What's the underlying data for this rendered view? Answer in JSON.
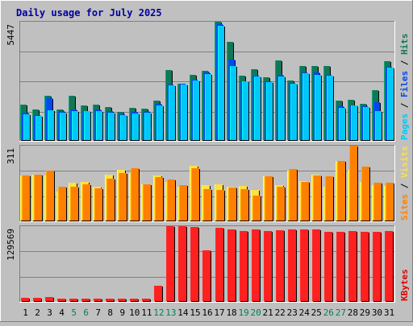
{
  "chart_data": {
    "type": "bar",
    "title": "Daily usage for July 2025",
    "categories": [
      "1",
      "2",
      "3",
      "4",
      "5",
      "6",
      "7",
      "8",
      "9",
      "10",
      "11",
      "12",
      "13",
      "14",
      "15",
      "16",
      "17",
      "18",
      "19",
      "20",
      "21",
      "22",
      "23",
      "24",
      "25",
      "26",
      "27",
      "28",
      "29",
      "30",
      "31"
    ],
    "weekend_days": [
      "5",
      "6",
      "12",
      "13",
      "19",
      "20",
      "26",
      "27"
    ],
    "panels": [
      {
        "name": "requests",
        "ymax_label": "5447",
        "ymax": 5447,
        "ylabel_parts": [
          {
            "text": "Pages",
            "color": "#00c8f8"
          },
          {
            "text": " / ",
            "color": "#000000"
          },
          {
            "text": "Files",
            "color": "#0048f0"
          },
          {
            "text": " / ",
            "color": "#000000"
          },
          {
            "text": "Hits",
            "color": "#107858"
          }
        ],
        "series": [
          {
            "name": "Hits",
            "color": "#107858",
            "values": [
              1630,
              1420,
              2050,
              1410,
              2040,
              1580,
              1620,
              1520,
              1300,
              1470,
              1450,
              1820,
              3210,
              2590,
              2990,
              3200,
              5447,
              4520,
              2980,
              3260,
              2880,
              3680,
              2750,
              3400,
              3410,
              3410,
              1810,
              1860,
              1680,
              2280,
              3630
            ]
          },
          {
            "name": "Files",
            "color": "#0048f0",
            "values": [
              1270,
              1160,
              1940,
              1340,
              1400,
              1320,
              1390,
              1340,
              1180,
              1280,
              1320,
              1660,
              2570,
              2580,
              2780,
              3100,
              5330,
              3720,
              2710,
              2950,
              2700,
              3000,
              2640,
              3110,
              3110,
              3000,
              1540,
              1610,
              1550,
              1730,
              3360
            ]
          },
          {
            "name": "Pages",
            "color": "#00c8f8",
            "values": [
              1200,
              1110,
              1360,
              1270,
              1350,
              1320,
              1330,
              1270,
              1140,
              1240,
              1270,
              1590,
              2530,
              2560,
              2730,
              3020,
              5280,
              3420,
              2700,
              2910,
              2670,
              2940,
              2600,
              3060,
              3000,
              2980,
              1490,
              1580,
              1510,
              1330,
              3330
            ]
          }
        ]
      },
      {
        "name": "visits",
        "ymax_label": "311",
        "ymax": 311,
        "ylabel_parts": [
          {
            "text": "Sites",
            "color": "#ff8000"
          },
          {
            "text": " / ",
            "color": "#000000"
          },
          {
            "text": "Visits",
            "color": "#ffe040"
          }
        ],
        "series": [
          {
            "name": "Visits",
            "color": "#ffe040",
            "values": [
              187,
              189,
              188,
              120,
              156,
              159,
              139,
              189,
              210,
              198,
              151,
              186,
              162,
              142,
              229,
              146,
              149,
              142,
              144,
              128,
              183,
              147,
              209,
              163,
              191,
              141,
              246,
              212,
              161,
              148,
              145
            ]
          },
          {
            "name": "Sites",
            "color": "#ff8000",
            "values": [
              187,
              189,
              209,
              139,
              139,
              149,
              135,
              175,
              196,
              218,
              150,
              180,
              169,
              147,
              218,
              130,
              128,
              138,
              130,
              103,
              185,
              141,
              215,
              162,
              186,
              183,
              249,
              311,
              225,
              158,
              158
            ]
          }
        ]
      },
      {
        "name": "kbytes",
        "ymax_label": "129569",
        "ymax": 129569,
        "ylabel_parts": [
          {
            "text": "KBytes",
            "color": "#e00000"
          }
        ],
        "series": [
          {
            "name": "KBytes",
            "color": "#ff2020",
            "values": [
              5200,
              5200,
              6500,
              3900,
              3900,
              3900,
              3900,
              4500,
              4500,
              4500,
              4500,
              26000,
              129569,
              129569,
              128300,
              87800,
              127000,
              124400,
              121900,
              124400,
              121900,
              123100,
              124400,
              124400,
              124400,
              119300,
              119300,
              120600,
              119300,
              119300,
              120600
            ]
          }
        ]
      }
    ]
  }
}
